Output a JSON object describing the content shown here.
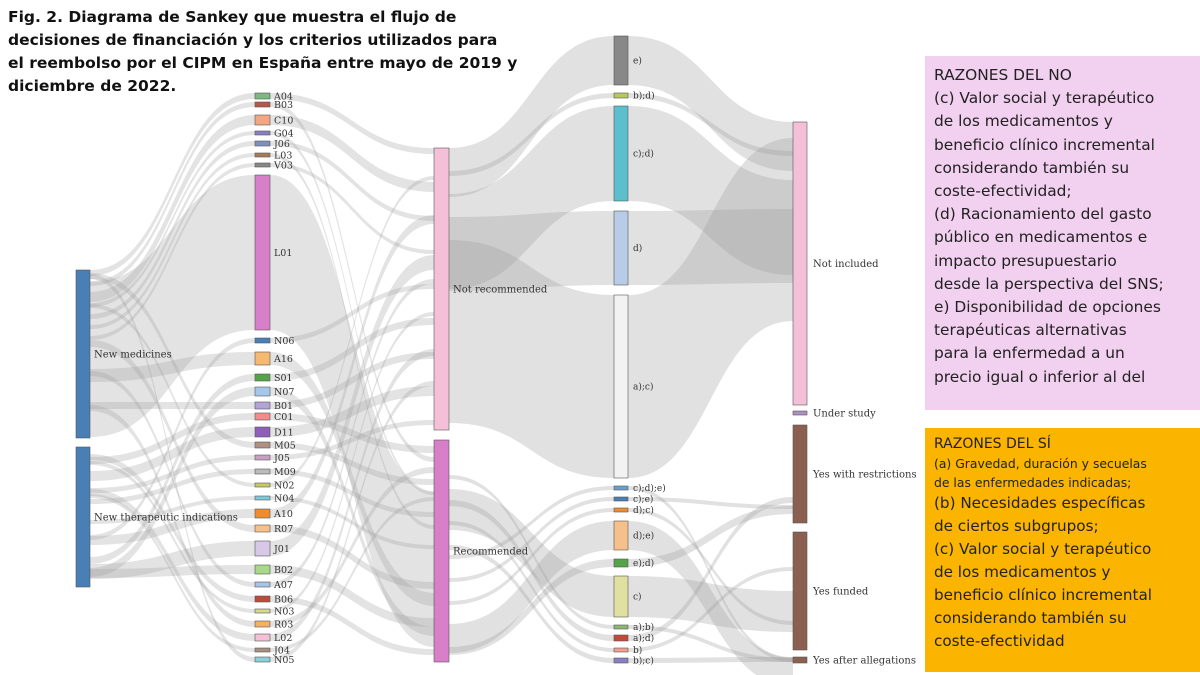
{
  "figure": {
    "title": "Fig. 2. Diagrama de Sankey que muestra el flujo de\ndecisiones de financiación y los criterios utilizados para\nel reembolso por el CIPM en España entre mayo de 2019 y\ndiciembre de 2022."
  },
  "sankey": {
    "sources": [
      {
        "label": "New medicines",
        "color": "#4a7fb5"
      },
      {
        "label": "New therapeutic indications",
        "color": "#4a7fb5"
      }
    ],
    "atc_codes": [
      {
        "label": "A04",
        "color": "#7fb77e"
      },
      {
        "label": "B03",
        "color": "#b5574a"
      },
      {
        "label": "C10",
        "color": "#f4a582"
      },
      {
        "label": "G04",
        "color": "#8a7fc0"
      },
      {
        "label": "J06",
        "color": "#7e8fc0"
      },
      {
        "label": "L03",
        "color": "#a67c52"
      },
      {
        "label": "V03",
        "color": "#888888"
      },
      {
        "label": "L01",
        "color": "#d77fc8"
      },
      {
        "label": "N06",
        "color": "#4a7fb5"
      },
      {
        "label": "A16",
        "color": "#f5b971"
      },
      {
        "label": "S01",
        "color": "#55a24a"
      },
      {
        "label": "N07",
        "color": "#a6c8e8"
      },
      {
        "label": "B01",
        "color": "#b3a4d6"
      },
      {
        "label": "C01",
        "color": "#f08c8c"
      },
      {
        "label": "D11",
        "color": "#8e5fb8"
      },
      {
        "label": "M05",
        "color": "#b09080"
      },
      {
        "label": "J05",
        "color": "#c9a0c0"
      },
      {
        "label": "M09",
        "color": "#bbbbbb"
      },
      {
        "label": "N02",
        "color": "#c8c86a"
      },
      {
        "label": "N04",
        "color": "#7ecad8"
      },
      {
        "label": "A10",
        "color": "#f08c30"
      },
      {
        "label": "R07",
        "color": "#f5c08a"
      },
      {
        "label": "J01",
        "color": "#d8c8e8"
      },
      {
        "label": "B02",
        "color": "#a8d88a"
      },
      {
        "label": "A07",
        "color": "#a8c4e8"
      },
      {
        "label": "B06",
        "color": "#c04a3a"
      },
      {
        "label": "N03",
        "color": "#d8d88a"
      },
      {
        "label": "R03",
        "color": "#f5b060"
      },
      {
        "label": "L02",
        "color": "#f4c0d8"
      },
      {
        "label": "J04",
        "color": "#a89080"
      },
      {
        "label": "N05",
        "color": "#8ad0d8"
      }
    ],
    "recommendations": [
      {
        "label": "Not recommended",
        "color": "#f4c0d8"
      },
      {
        "label": "Recommended",
        "color": "#d77fc8"
      }
    ],
    "criteria": [
      {
        "label": "e)",
        "color": "#888888"
      },
      {
        "label": "b);d)",
        "color": "#b8c860"
      },
      {
        "label": "c);d)",
        "color": "#5bc0cc"
      },
      {
        "label": "d)",
        "color": "#b8cce8"
      },
      {
        "label": "a);c)",
        "color": "#f2f2f2"
      },
      {
        "label": "c);d);e)",
        "color": "#6aa0d0"
      },
      {
        "label": "c);e)",
        "color": "#4a7fb5"
      },
      {
        "label": "d);c)",
        "color": "#f08c30"
      },
      {
        "label": "d);e)",
        "color": "#f5c08a"
      },
      {
        "label": "e);d)",
        "color": "#55a24a"
      },
      {
        "label": "c)",
        "color": "#e0e0a0"
      },
      {
        "label": "a);b)",
        "color": "#8ab870"
      },
      {
        "label": "a);d)",
        "color": "#c04a3a"
      },
      {
        "label": "b)",
        "color": "#f0a090"
      },
      {
        "label": "b);c)",
        "color": "#8a7fc0"
      }
    ],
    "outcomes": [
      {
        "label": "Not included",
        "color": "#f4c0d8"
      },
      {
        "label": "Under study",
        "color": "#b090c0"
      },
      {
        "label": "Yes with restrictions",
        "color": "#8c6050"
      },
      {
        "label": "Yes funded",
        "color": "#8c6050"
      },
      {
        "label": "Yes after allegations",
        "color": "#8c6050"
      }
    ]
  },
  "reasons_no": {
    "title": "RAZONES DEL NO",
    "body": "(c) Valor social y terapéutico\nde los medicamentos y\nbeneficio clínico incremental\nconsiderando también su\ncoste-efectividad;\n(d) Racionamiento del gasto\npúblico en medicamentos e\nimpacto presupuestario\ndesde la perspectiva del SNS;\ne) Disponibilidad de opciones\nterapéuticas alternativas\npara la enfermedad a un\nprecio igual o inferior al del",
    "background": "#f2d0f0"
  },
  "reasons_si": {
    "title": "RAZONES DEL SÍ",
    "item_a": "(a) Gravedad, duración y secuelas\nde las enfermedades indicadas;",
    "item_b": "(b) Necesidades específicas\nde ciertos subgrupos;",
    "item_c": "(c) Valor social y terapéutico\nde los medicamentos y\nbeneficio clínico incremental\nconsiderando también su\ncoste-efectividad",
    "background": "#fbb500"
  }
}
